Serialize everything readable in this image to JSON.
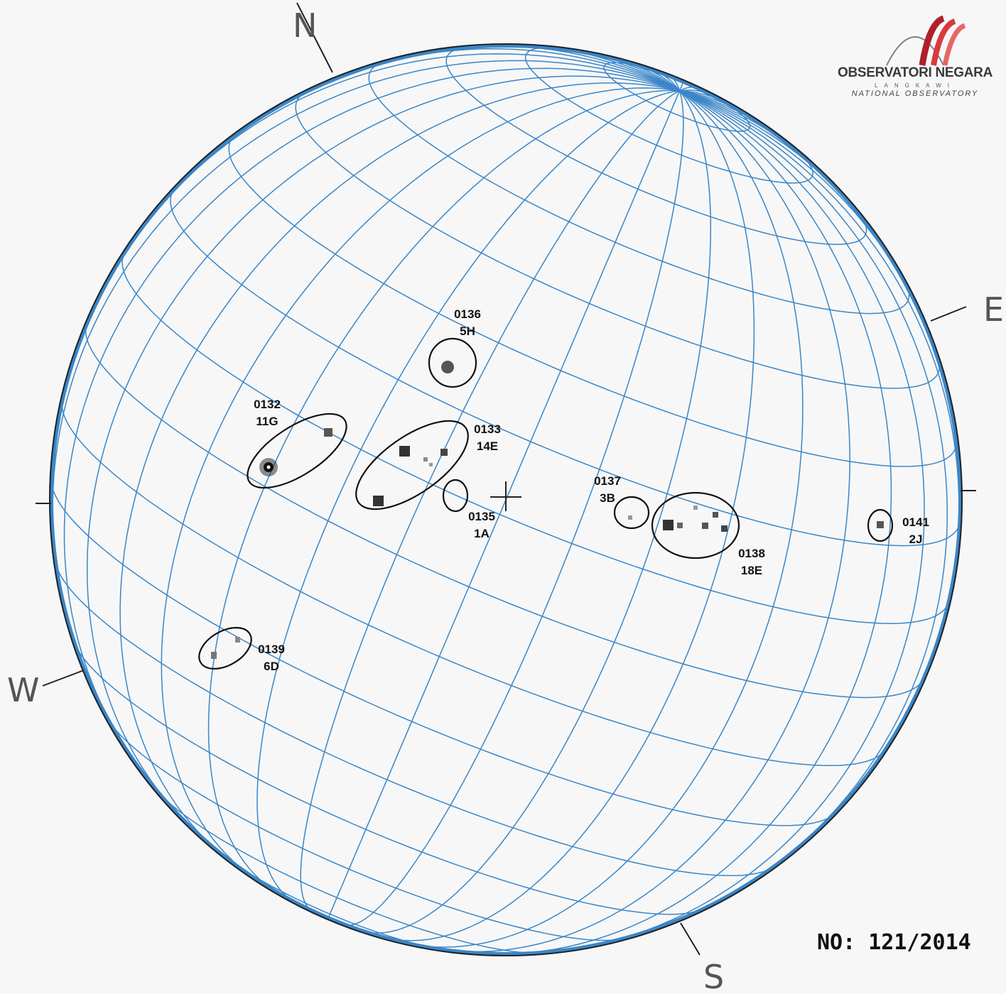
{
  "logo": {
    "main": "OBSERVATORI NEGARA",
    "sub": "LANGKAWI",
    "sub2": "NATIONAL OBSERVATORY",
    "colors": [
      "#b0202a",
      "#d83a3a",
      "#e86666"
    ],
    "icon": "observatory-arcs-logo"
  },
  "report_number": "NO:  121/2014",
  "directions": {
    "north": "N",
    "south": "S",
    "east": "E",
    "west": "W"
  },
  "grid_color": "#3a86c8",
  "limb_color": "#222222",
  "sunspot_groups": [
    {
      "number": "0132",
      "class": "11G"
    },
    {
      "number": "0133",
      "class": "14E"
    },
    {
      "number": "0135",
      "class": "1A"
    },
    {
      "number": "0136",
      "class": "5H"
    },
    {
      "number": "0137",
      "class": "3B"
    },
    {
      "number": "0138",
      "class": "18E"
    },
    {
      "number": "0139",
      "class": "6D"
    },
    {
      "number": "0141",
      "class": "2J"
    }
  ]
}
